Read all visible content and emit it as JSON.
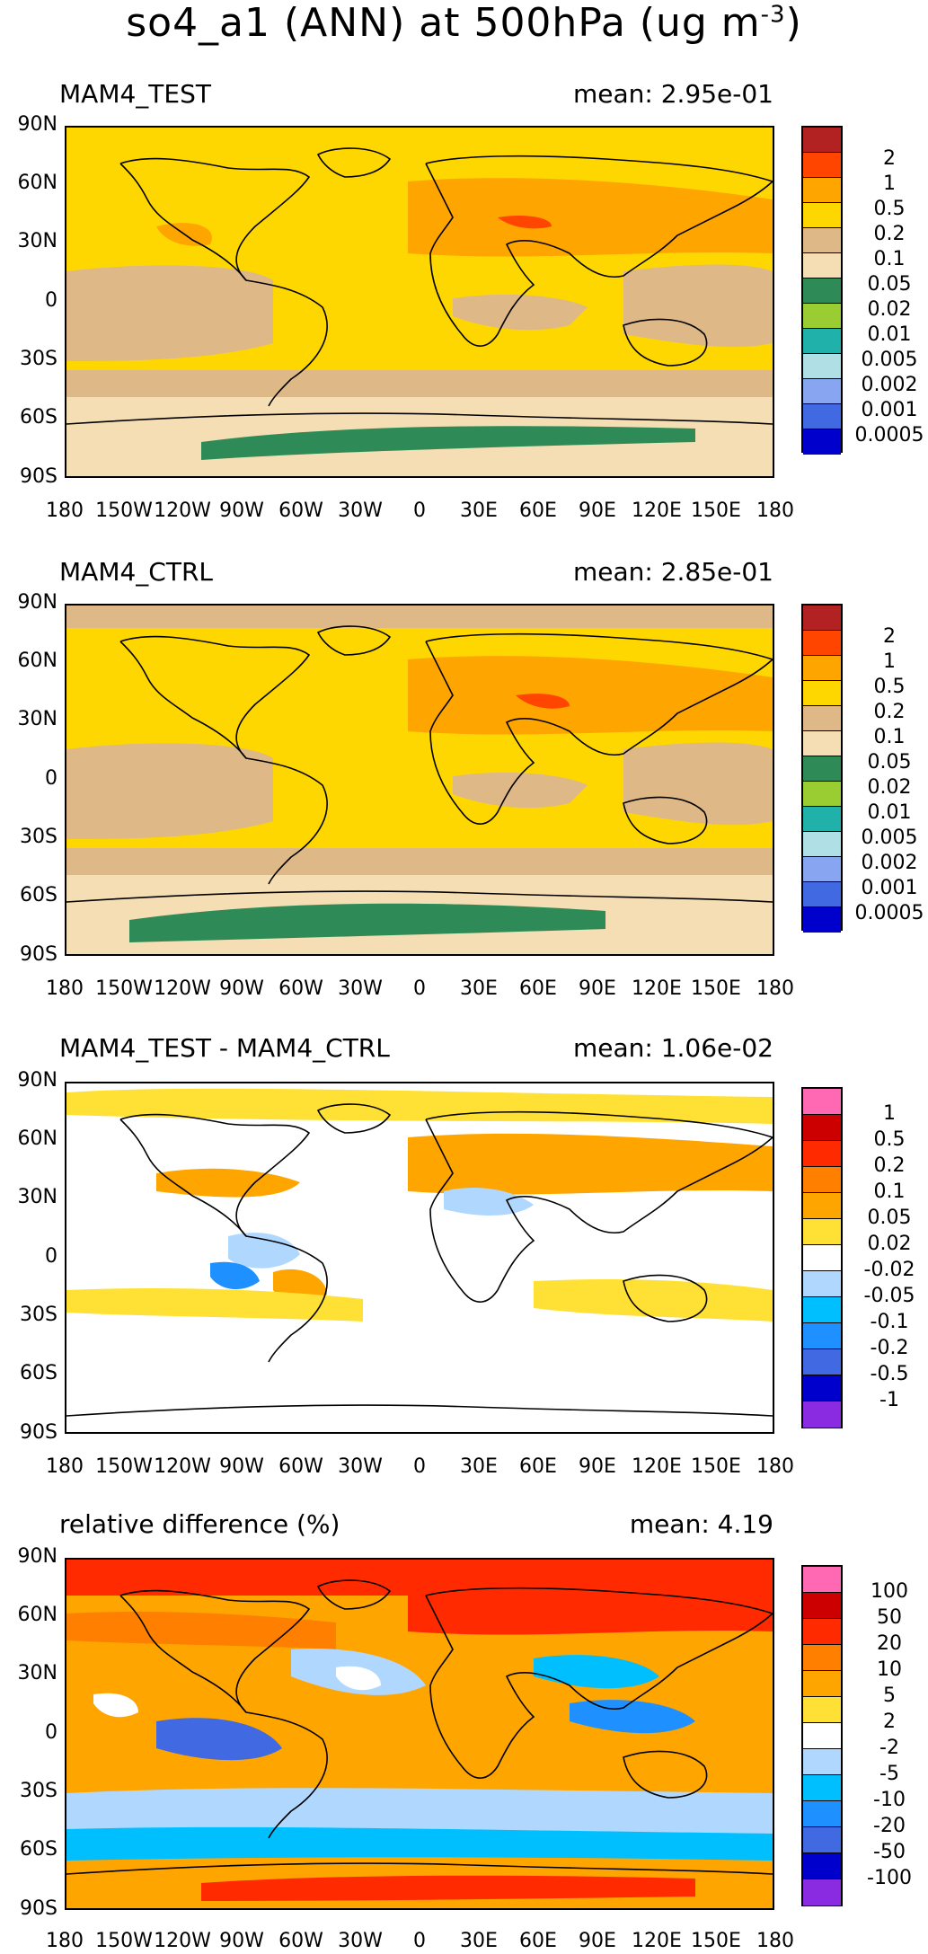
{
  "title_main": "so4_a1 (ANN) at 500hPa (ug m",
  "title_sup": "-3",
  "title_close": ")",
  "lat_ticks": [
    "90N",
    "60N",
    "30N",
    "0",
    "30S",
    "60S",
    "90S"
  ],
  "lon_ticks": [
    "180",
    "150W",
    "120W",
    "90W",
    "60W",
    "30W",
    "0",
    "30E",
    "60E",
    "90E",
    "120E",
    "150E",
    "180"
  ],
  "panels": [
    {
      "label": "MAM4_TEST",
      "mean": "mean: 2.95e-01",
      "colorbar": {
        "colors": [
          "#b22222",
          "#ff4500",
          "#ffa500",
          "#ffd700",
          "#deb887",
          "#f5deb3",
          "#2e8b57",
          "#9acd32",
          "#20b2aa",
          "#b0e0e6",
          "#87a5f0",
          "#4169e1",
          "#0000cd"
        ],
        "labels": [
          "2",
          "1",
          "0.5",
          "0.2",
          "0.1",
          "0.05",
          "0.02",
          "0.01",
          "0.005",
          "0.002",
          "0.001",
          "0.0005"
        ]
      }
    },
    {
      "label": "MAM4_CTRL",
      "mean": "mean: 2.85e-01",
      "colorbar": {
        "colors": [
          "#b22222",
          "#ff4500",
          "#ffa500",
          "#ffd700",
          "#deb887",
          "#f5deb3",
          "#2e8b57",
          "#9acd32",
          "#20b2aa",
          "#b0e0e6",
          "#87a5f0",
          "#4169e1",
          "#0000cd"
        ],
        "labels": [
          "2",
          "1",
          "0.5",
          "0.2",
          "0.1",
          "0.05",
          "0.02",
          "0.01",
          "0.005",
          "0.002",
          "0.001",
          "0.0005"
        ]
      }
    },
    {
      "label": "MAM4_TEST - MAM4_CTRL",
      "mean": "mean: 1.06e-02",
      "colorbar": {
        "colors": [
          "#ff69b4",
          "#cc0000",
          "#ff2a00",
          "#ff7f00",
          "#ffa500",
          "#ffe135",
          "#ffffff",
          "#b0d8ff",
          "#00bfff",
          "#1e90ff",
          "#4169e1",
          "#0000cd",
          "#8a2be2"
        ],
        "labels": [
          "1",
          "0.5",
          "0.2",
          "0.1",
          "0.05",
          "0.02",
          "-0.02",
          "-0.05",
          "-0.1",
          "-0.2",
          "-0.5",
          "-1"
        ]
      }
    },
    {
      "label": "relative difference (%)",
      "mean": "mean:  4.19",
      "colorbar": {
        "colors": [
          "#ff69b4",
          "#cc0000",
          "#ff2a00",
          "#ff7f00",
          "#ffa500",
          "#ffe135",
          "#ffffff",
          "#b0d8ff",
          "#00bfff",
          "#1e90ff",
          "#4169e1",
          "#0000cd",
          "#8a2be2"
        ],
        "labels": [
          "100",
          "50",
          "20",
          "10",
          "5",
          "2",
          "-2",
          "-5",
          "-10",
          "-20",
          "-50",
          "-100"
        ]
      }
    }
  ]
}
